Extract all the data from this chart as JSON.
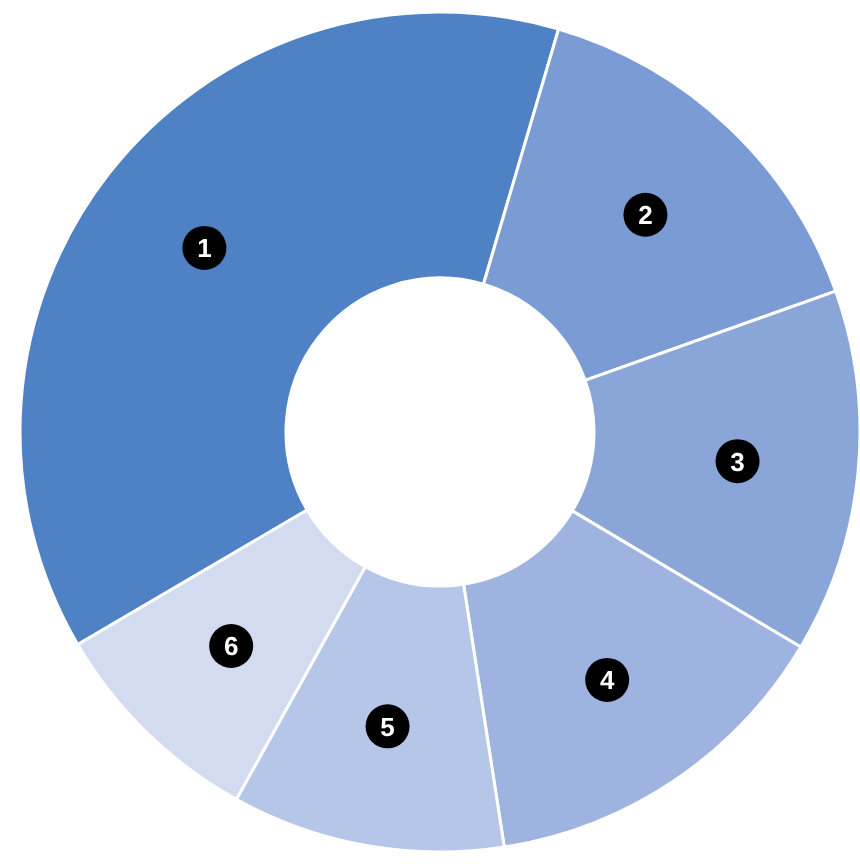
{
  "chart_data": {
    "type": "donut",
    "categories": [
      "1",
      "2",
      "3",
      "4",
      "5",
      "6"
    ],
    "values": [
      38,
      15,
      14,
      14,
      10.5,
      8.5
    ],
    "colors": [
      "#4f81c5",
      "#7a9bd3",
      "#8aa6d8",
      "#9fb3e0",
      "#b5c6e8",
      "#d3dbf0"
    ]
  }
}
